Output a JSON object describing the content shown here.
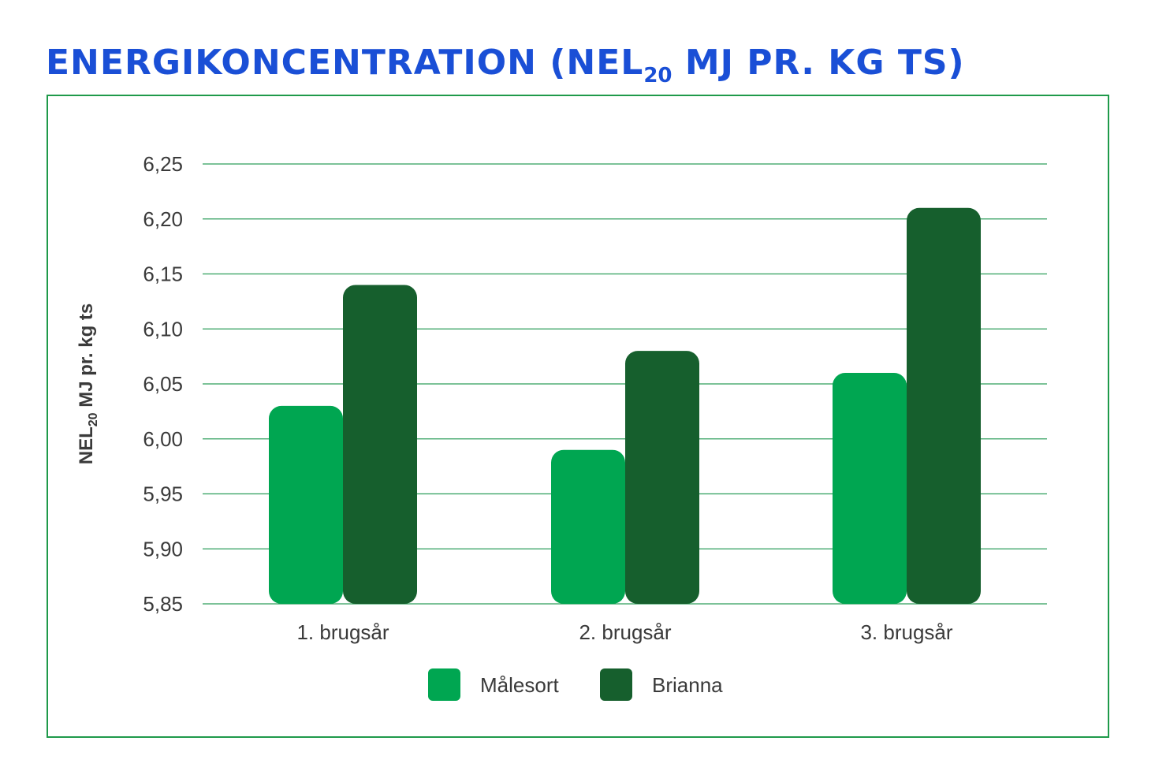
{
  "header": {
    "title_main": "ENERGIKONCENTRATION (NEL",
    "title_sub": "20",
    "title_rest": " MJ PR. KG TS)"
  },
  "colors": {
    "title": "#1a4fd6",
    "frame": "#1f9a4a",
    "grid": "#2e9e5b",
    "malesort": "#00a651",
    "brianna": "#165f2d"
  },
  "chart_data": {
    "type": "bar",
    "categories": [
      "1. brugsår",
      "2. brugsår",
      "3. brugsår"
    ],
    "series": [
      {
        "name": "Målesort",
        "values": [
          6.03,
          5.99,
          6.06
        ]
      },
      {
        "name": "Brianna",
        "values": [
          6.14,
          6.08,
          6.21
        ]
      }
    ],
    "ylim": [
      5.85,
      6.25
    ],
    "yticks": [
      "5,85",
      "5,90",
      "5,95",
      "6,00",
      "6,05",
      "6,10",
      "6,15",
      "6,20",
      "6,25"
    ],
    "ylabel_main": "NEL",
    "ylabel_sub": "20",
    "ylabel_rest": " MJ pr. kg ts",
    "grid": true,
    "legend": "bottom-center"
  }
}
